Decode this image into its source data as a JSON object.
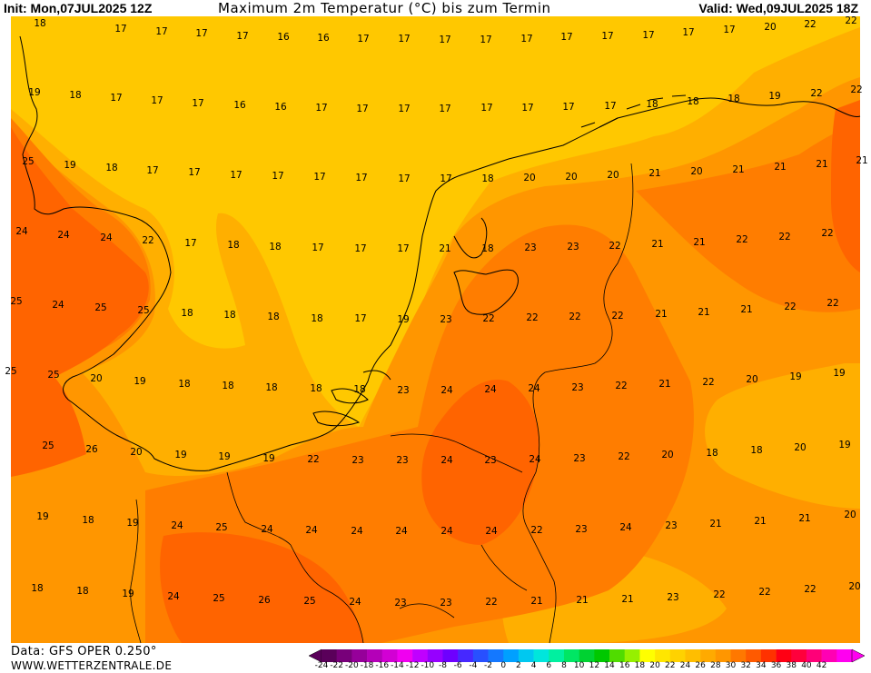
{
  "header": {
    "init": "Init: Mon,07JUL2025 12Z",
    "title": "Maximum 2m Temperatur (°C) bis zum Termin",
    "valid": "Valid: Wed,09JUL2025 18Z"
  },
  "footer": {
    "data_source": "Data: GFS OPER 0.250°",
    "website": "WWW.WETTERZENTRALE.DE"
  },
  "colorbar": {
    "ticks": [
      "-24",
      "-22",
      "-20",
      "-18",
      "-16",
      "-14",
      "-12",
      "-10",
      "-8",
      "-6",
      "-4",
      "-2",
      "0",
      "2",
      "4",
      "6",
      "8",
      "10",
      "12",
      "14",
      "16",
      "18",
      "20",
      "22",
      "24",
      "26",
      "28",
      "30",
      "32",
      "34",
      "36",
      "38",
      "40",
      "42"
    ],
    "colors": [
      "#5a005a",
      "#78007a",
      "#96009a",
      "#b400b8",
      "#d200d4",
      "#f000f0",
      "#c000ff",
      "#9600ff",
      "#6e00ff",
      "#4628ff",
      "#2850ff",
      "#1478ff",
      "#00a0ff",
      "#00c8f0",
      "#00e6dc",
      "#00f0a0",
      "#00e664",
      "#00d232",
      "#00c800",
      "#50dc00",
      "#96f000",
      "#ffff00",
      "#ffe600",
      "#ffd200",
      "#ffbe00",
      "#ffaa00",
      "#ff9600",
      "#ff7800",
      "#ff5a00",
      "#ff3200",
      "#ff0014",
      "#ff003c",
      "#ff0078",
      "#ff00b4",
      "#ff00f0"
    ]
  },
  "map_colors": {
    "t16_18": "#ffc800",
    "t18_20": "#ffaf00",
    "t20_22": "#ff9600",
    "t22_24": "#ff7d00",
    "t24_26": "#ff6400"
  },
  "labels": [
    [
      "18",
      44,
      25
    ],
    [
      "17",
      133,
      31
    ],
    [
      "17",
      178,
      34
    ],
    [
      "17",
      222,
      36
    ],
    [
      "17",
      267,
      39
    ],
    [
      "16",
      312,
      40
    ],
    [
      "16",
      356,
      41
    ],
    [
      "17",
      400,
      42
    ],
    [
      "17",
      445,
      42
    ],
    [
      "17",
      490,
      43
    ],
    [
      "17",
      535,
      43
    ],
    [
      "17",
      580,
      42
    ],
    [
      "17",
      624,
      40
    ],
    [
      "17",
      669,
      39
    ],
    [
      "17",
      714,
      38
    ],
    [
      "17",
      758,
      35
    ],
    [
      "17",
      803,
      32
    ],
    [
      "20",
      848,
      29
    ],
    [
      "22",
      892,
      26
    ],
    [
      "22",
      937,
      22
    ],
    [
      "19",
      38,
      101
    ],
    [
      "18",
      83,
      104
    ],
    [
      "17",
      128,
      107
    ],
    [
      "17",
      173,
      110
    ],
    [
      "17",
      218,
      113
    ],
    [
      "16",
      264,
      115
    ],
    [
      "16",
      309,
      117
    ],
    [
      "17",
      354,
      118
    ],
    [
      "17",
      399,
      119
    ],
    [
      "17",
      445,
      119
    ],
    [
      "17",
      490,
      119
    ],
    [
      "17",
      536,
      118
    ],
    [
      "17",
      581,
      118
    ],
    [
      "17",
      626,
      117
    ],
    [
      "17",
      672,
      116
    ],
    [
      "18",
      718,
      114
    ],
    [
      "18",
      763,
      111
    ],
    [
      "18",
      808,
      108
    ],
    [
      "19",
      853,
      105
    ],
    [
      "22",
      899,
      102
    ],
    [
      "22",
      943,
      98
    ],
    [
      "25",
      31,
      177
    ],
    [
      "19",
      77,
      181
    ],
    [
      "18",
      123,
      184
    ],
    [
      "17",
      168,
      187
    ],
    [
      "17",
      214,
      189
    ],
    [
      "17",
      260,
      192
    ],
    [
      "17",
      306,
      193
    ],
    [
      "17",
      352,
      194
    ],
    [
      "17",
      398,
      195
    ],
    [
      "17",
      445,
      196
    ],
    [
      "17",
      491,
      196
    ],
    [
      "18",
      537,
      196
    ],
    [
      "20",
      583,
      195
    ],
    [
      "20",
      629,
      194
    ],
    [
      "20",
      675,
      192
    ],
    [
      "21",
      721,
      190
    ],
    [
      "20",
      767,
      188
    ],
    [
      "21",
      813,
      186
    ],
    [
      "21",
      859,
      183
    ],
    [
      "21",
      905,
      180
    ],
    [
      "21",
      949,
      176
    ],
    [
      "24",
      24,
      254
    ],
    [
      "24",
      70,
      258
    ],
    [
      "24",
      117,
      261
    ],
    [
      "22",
      163,
      264
    ],
    [
      "17",
      210,
      267
    ],
    [
      "18",
      257,
      269
    ],
    [
      "18",
      303,
      271
    ],
    [
      "17",
      350,
      272
    ],
    [
      "17",
      397,
      273
    ],
    [
      "17",
      444,
      273
    ],
    [
      "21",
      490,
      273
    ],
    [
      "18",
      537,
      273
    ],
    [
      "23",
      584,
      272
    ],
    [
      "23",
      631,
      271
    ],
    [
      "22",
      677,
      270
    ],
    [
      "21",
      724,
      268
    ],
    [
      "21",
      770,
      266
    ],
    [
      "22",
      817,
      263
    ],
    [
      "22",
      864,
      260
    ],
    [
      "22",
      911,
      256
    ],
    [
      "25",
      18,
      331
    ],
    [
      "24",
      64,
      335
    ],
    [
      "25",
      111,
      338
    ],
    [
      "25",
      158,
      341
    ],
    [
      "18",
      206,
      344
    ],
    [
      "18",
      253,
      346
    ],
    [
      "18",
      301,
      348
    ],
    [
      "18",
      349,
      350
    ],
    [
      "17",
      397,
      350
    ],
    [
      "19",
      444,
      351
    ],
    [
      "23",
      491,
      351
    ],
    [
      "22",
      538,
      350
    ],
    [
      "22",
      586,
      349
    ],
    [
      "22",
      633,
      348
    ],
    [
      "22",
      680,
      347
    ],
    [
      "21",
      728,
      345
    ],
    [
      "21",
      775,
      343
    ],
    [
      "21",
      822,
      340
    ],
    [
      "22",
      870,
      337
    ],
    [
      "22",
      917,
      333
    ],
    [
      "25",
      12,
      408
    ],
    [
      "25",
      59,
      412
    ],
    [
      "20",
      106,
      416
    ],
    [
      "19",
      154,
      419
    ],
    [
      "18",
      203,
      422
    ],
    [
      "18",
      251,
      424
    ],
    [
      "18",
      299,
      426
    ],
    [
      "18",
      348,
      427
    ],
    [
      "18",
      396,
      428
    ],
    [
      "23",
      444,
      429
    ],
    [
      "24",
      492,
      429
    ],
    [
      "24",
      540,
      428
    ],
    [
      "24",
      588,
      427
    ],
    [
      "23",
      636,
      426
    ],
    [
      "22",
      684,
      424
    ],
    [
      "21",
      732,
      422
    ],
    [
      "22",
      780,
      420
    ],
    [
      "20",
      828,
      417
    ],
    [
      "19",
      876,
      414
    ],
    [
      "19",
      924,
      410
    ],
    [
      "25",
      53,
      490
    ],
    [
      "26",
      101,
      494
    ],
    [
      "20",
      150,
      497
    ],
    [
      "19",
      199,
      500
    ],
    [
      "19",
      247,
      502
    ],
    [
      "19",
      296,
      504
    ],
    [
      "22",
      345,
      505
    ],
    [
      "23",
      394,
      506
    ],
    [
      "23",
      443,
      506
    ],
    [
      "24",
      492,
      506
    ],
    [
      "23",
      540,
      506
    ],
    [
      "24",
      589,
      505
    ],
    [
      "23",
      638,
      504
    ],
    [
      "22",
      687,
      502
    ],
    [
      "20",
      735,
      500
    ],
    [
      "18",
      784,
      498
    ],
    [
      "18",
      833,
      495
    ],
    [
      "20",
      881,
      492
    ],
    [
      "19",
      930,
      489
    ],
    [
      "19",
      47,
      568
    ],
    [
      "18",
      97,
      572
    ],
    [
      "19",
      146,
      575
    ],
    [
      "24",
      195,
      578
    ],
    [
      "25",
      244,
      580
    ],
    [
      "24",
      294,
      582
    ],
    [
      "24",
      343,
      583
    ],
    [
      "24",
      393,
      584
    ],
    [
      "24",
      442,
      584
    ],
    [
      "24",
      492,
      584
    ],
    [
      "24",
      541,
      584
    ],
    [
      "22",
      591,
      583
    ],
    [
      "23",
      640,
      582
    ],
    [
      "24",
      689,
      580
    ],
    [
      "23",
      739,
      578
    ],
    [
      "21",
      788,
      576
    ],
    [
      "21",
      837,
      573
    ],
    [
      "21",
      886,
      570
    ],
    [
      "20",
      936,
      566
    ],
    [
      "18",
      41,
      647
    ],
    [
      "18",
      91,
      650
    ],
    [
      "19",
      141,
      653
    ],
    [
      "24",
      191,
      656
    ],
    [
      "25",
      241,
      658
    ],
    [
      "26",
      291,
      660
    ],
    [
      "25",
      341,
      661
    ],
    [
      "24",
      391,
      662
    ],
    [
      "23",
      441,
      663
    ],
    [
      "23",
      491,
      663
    ],
    [
      "22",
      541,
      662
    ],
    [
      "21",
      591,
      661
    ],
    [
      "21",
      641,
      660
    ],
    [
      "21",
      691,
      659
    ],
    [
      "23",
      741,
      657
    ],
    [
      "22",
      792,
      654
    ],
    [
      "22",
      842,
      651
    ],
    [
      "22",
      892,
      648
    ],
    [
      "20",
      941,
      645
    ]
  ]
}
